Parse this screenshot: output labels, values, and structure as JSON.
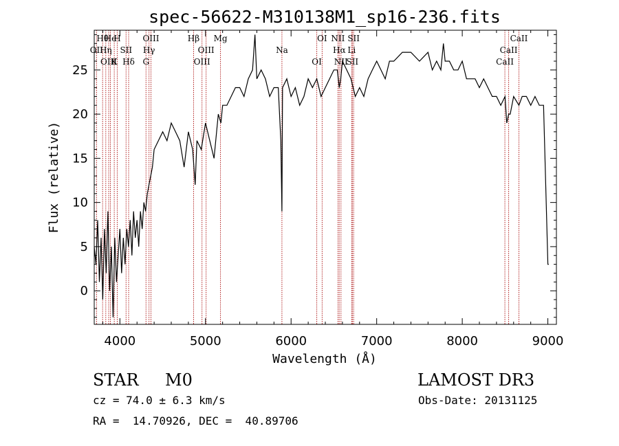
{
  "chart_data": {
    "type": "line",
    "title": "spec-56622-M310138M1_sp16-236.fits",
    "xlabel": "Wavelength (Å)",
    "ylabel": "Flux (relative)",
    "xlim": [
      3700,
      9100
    ],
    "ylim": [
      -3.8,
      29.5
    ],
    "x_ticks": [
      4000,
      5000,
      6000,
      7000,
      8000,
      9000
    ],
    "y_ticks": [
      0,
      5,
      10,
      15,
      20,
      25
    ],
    "grid": false,
    "line_color": "#000000",
    "marker_color": "#b22222",
    "series": [
      {
        "x": [
          3700,
          3720,
          3740,
          3760,
          3780,
          3800,
          3820,
          3840,
          3860,
          3880,
          3900,
          3920,
          3940,
          3960,
          3980,
          4000,
          4020,
          4040,
          4060,
          4080,
          4100,
          4120,
          4140,
          4160,
          4180,
          4200,
          4220,
          4240,
          4260,
          4280,
          4300,
          4320,
          4340,
          4360,
          4380,
          4400,
          4450,
          4500,
          4550,
          4600,
          4650,
          4700,
          4750,
          4800,
          4850,
          4880,
          4900,
          4950,
          5000,
          5050,
          5100,
          5150,
          5180,
          5200,
          5250,
          5300,
          5350,
          5400,
          5450,
          5500,
          5550,
          5578,
          5600,
          5650,
          5700,
          5750,
          5800,
          5850,
          5880,
          5893,
          5900,
          5950,
          6000,
          6050,
          6100,
          6150,
          6200,
          6250,
          6300,
          6350,
          6400,
          6450,
          6500,
          6540,
          6563,
          6580,
          6600,
          6650,
          6700,
          6750,
          6800,
          6850,
          6900,
          6950,
          7000,
          7050,
          7100,
          7150,
          7200,
          7300,
          7400,
          7500,
          7600,
          7650,
          7700,
          7750,
          7780,
          7800,
          7850,
          7900,
          7950,
          8000,
          8050,
          8100,
          8150,
          8200,
          8250,
          8300,
          8350,
          8400,
          8450,
          8500,
          8520,
          8542,
          8560,
          8600,
          8662,
          8700,
          8750,
          8800,
          8850,
          8900,
          8950,
          9000,
          9010
        ],
        "y": [
          5,
          3,
          8,
          1,
          6,
          -1,
          7,
          2,
          9,
          0,
          5,
          -3,
          6,
          1,
          4,
          7,
          2,
          6,
          3,
          7,
          5,
          8,
          4,
          9,
          6,
          8,
          5,
          9,
          7,
          10,
          9,
          11,
          12,
          13,
          14,
          16,
          17,
          18,
          17,
          19,
          18,
          17,
          14,
          18,
          16,
          12,
          17,
          16,
          19,
          17,
          15,
          20,
          19,
          21,
          21,
          22,
          23,
          23,
          22,
          24,
          25,
          29,
          24,
          25,
          24,
          22,
          23,
          23,
          17,
          9,
          23,
          24,
          22,
          23,
          21,
          22,
          24,
          23,
          24,
          22,
          23,
          24,
          25,
          25,
          23,
          24,
          26,
          25,
          24,
          22,
          23,
          22,
          24,
          25,
          26,
          25,
          24,
          26,
          26,
          27,
          27,
          26,
          27,
          25,
          26,
          25,
          28,
          26,
          26,
          25,
          25,
          26,
          24,
          24,
          24,
          23,
          24,
          23,
          22,
          22,
          21,
          22,
          19,
          20,
          20,
          22,
          21,
          22,
          22,
          21,
          22,
          21,
          21,
          3,
          3
        ]
      }
    ],
    "line_markers": [
      {
        "label": "Hθ",
        "x": 3798
      },
      {
        "label": "OII",
        "x": 3727
      },
      {
        "label": "OIII",
        "x": 3869
      },
      {
        "label": "He",
        "x": 3889
      },
      {
        "label": "Hη",
        "x": 3835
      },
      {
        "label": "K",
        "x": 3934
      },
      {
        "label": "H",
        "x": 3969
      },
      {
        "label": "SII",
        "x": 4072
      },
      {
        "label": "Hδ",
        "x": 4102
      },
      {
        "label": "OIII",
        "x": 4363
      },
      {
        "label": "Hγ",
        "x": 4340
      },
      {
        "label": "G",
        "x": 4305
      },
      {
        "label": "Hβ",
        "x": 4861
      },
      {
        "label": "OIII",
        "x": 5007
      },
      {
        "label": "OIII",
        "x": 4959
      },
      {
        "label": "Mg",
        "x": 5175
      },
      {
        "label": "Na",
        "x": 5893
      },
      {
        "label": "OI",
        "x": 6300
      },
      {
        "label": "OI",
        "x": 6363
      },
      {
        "label": "Hα",
        "x": 6563
      },
      {
        "label": "SII",
        "x": 6716
      },
      {
        "label": "NII",
        "x": 6548
      },
      {
        "label": "Li",
        "x": 6708
      },
      {
        "label": "NII",
        "x": 6583
      },
      {
        "label": "SII",
        "x": 6731
      },
      {
        "label": "CaII",
        "x": 8542
      },
      {
        "label": "CaII",
        "x": 8498
      },
      {
        "label": "CaII",
        "x": 8662
      }
    ]
  },
  "footer": {
    "object_type": "STAR",
    "subclass": "M0",
    "survey": "LAMOST DR3",
    "cz": "cz = 74.0 ± 6.3 km/s",
    "obs_date": "Obs-Date: 20131125",
    "coords": "RA =  14.70926, DEC =  40.89706"
  }
}
